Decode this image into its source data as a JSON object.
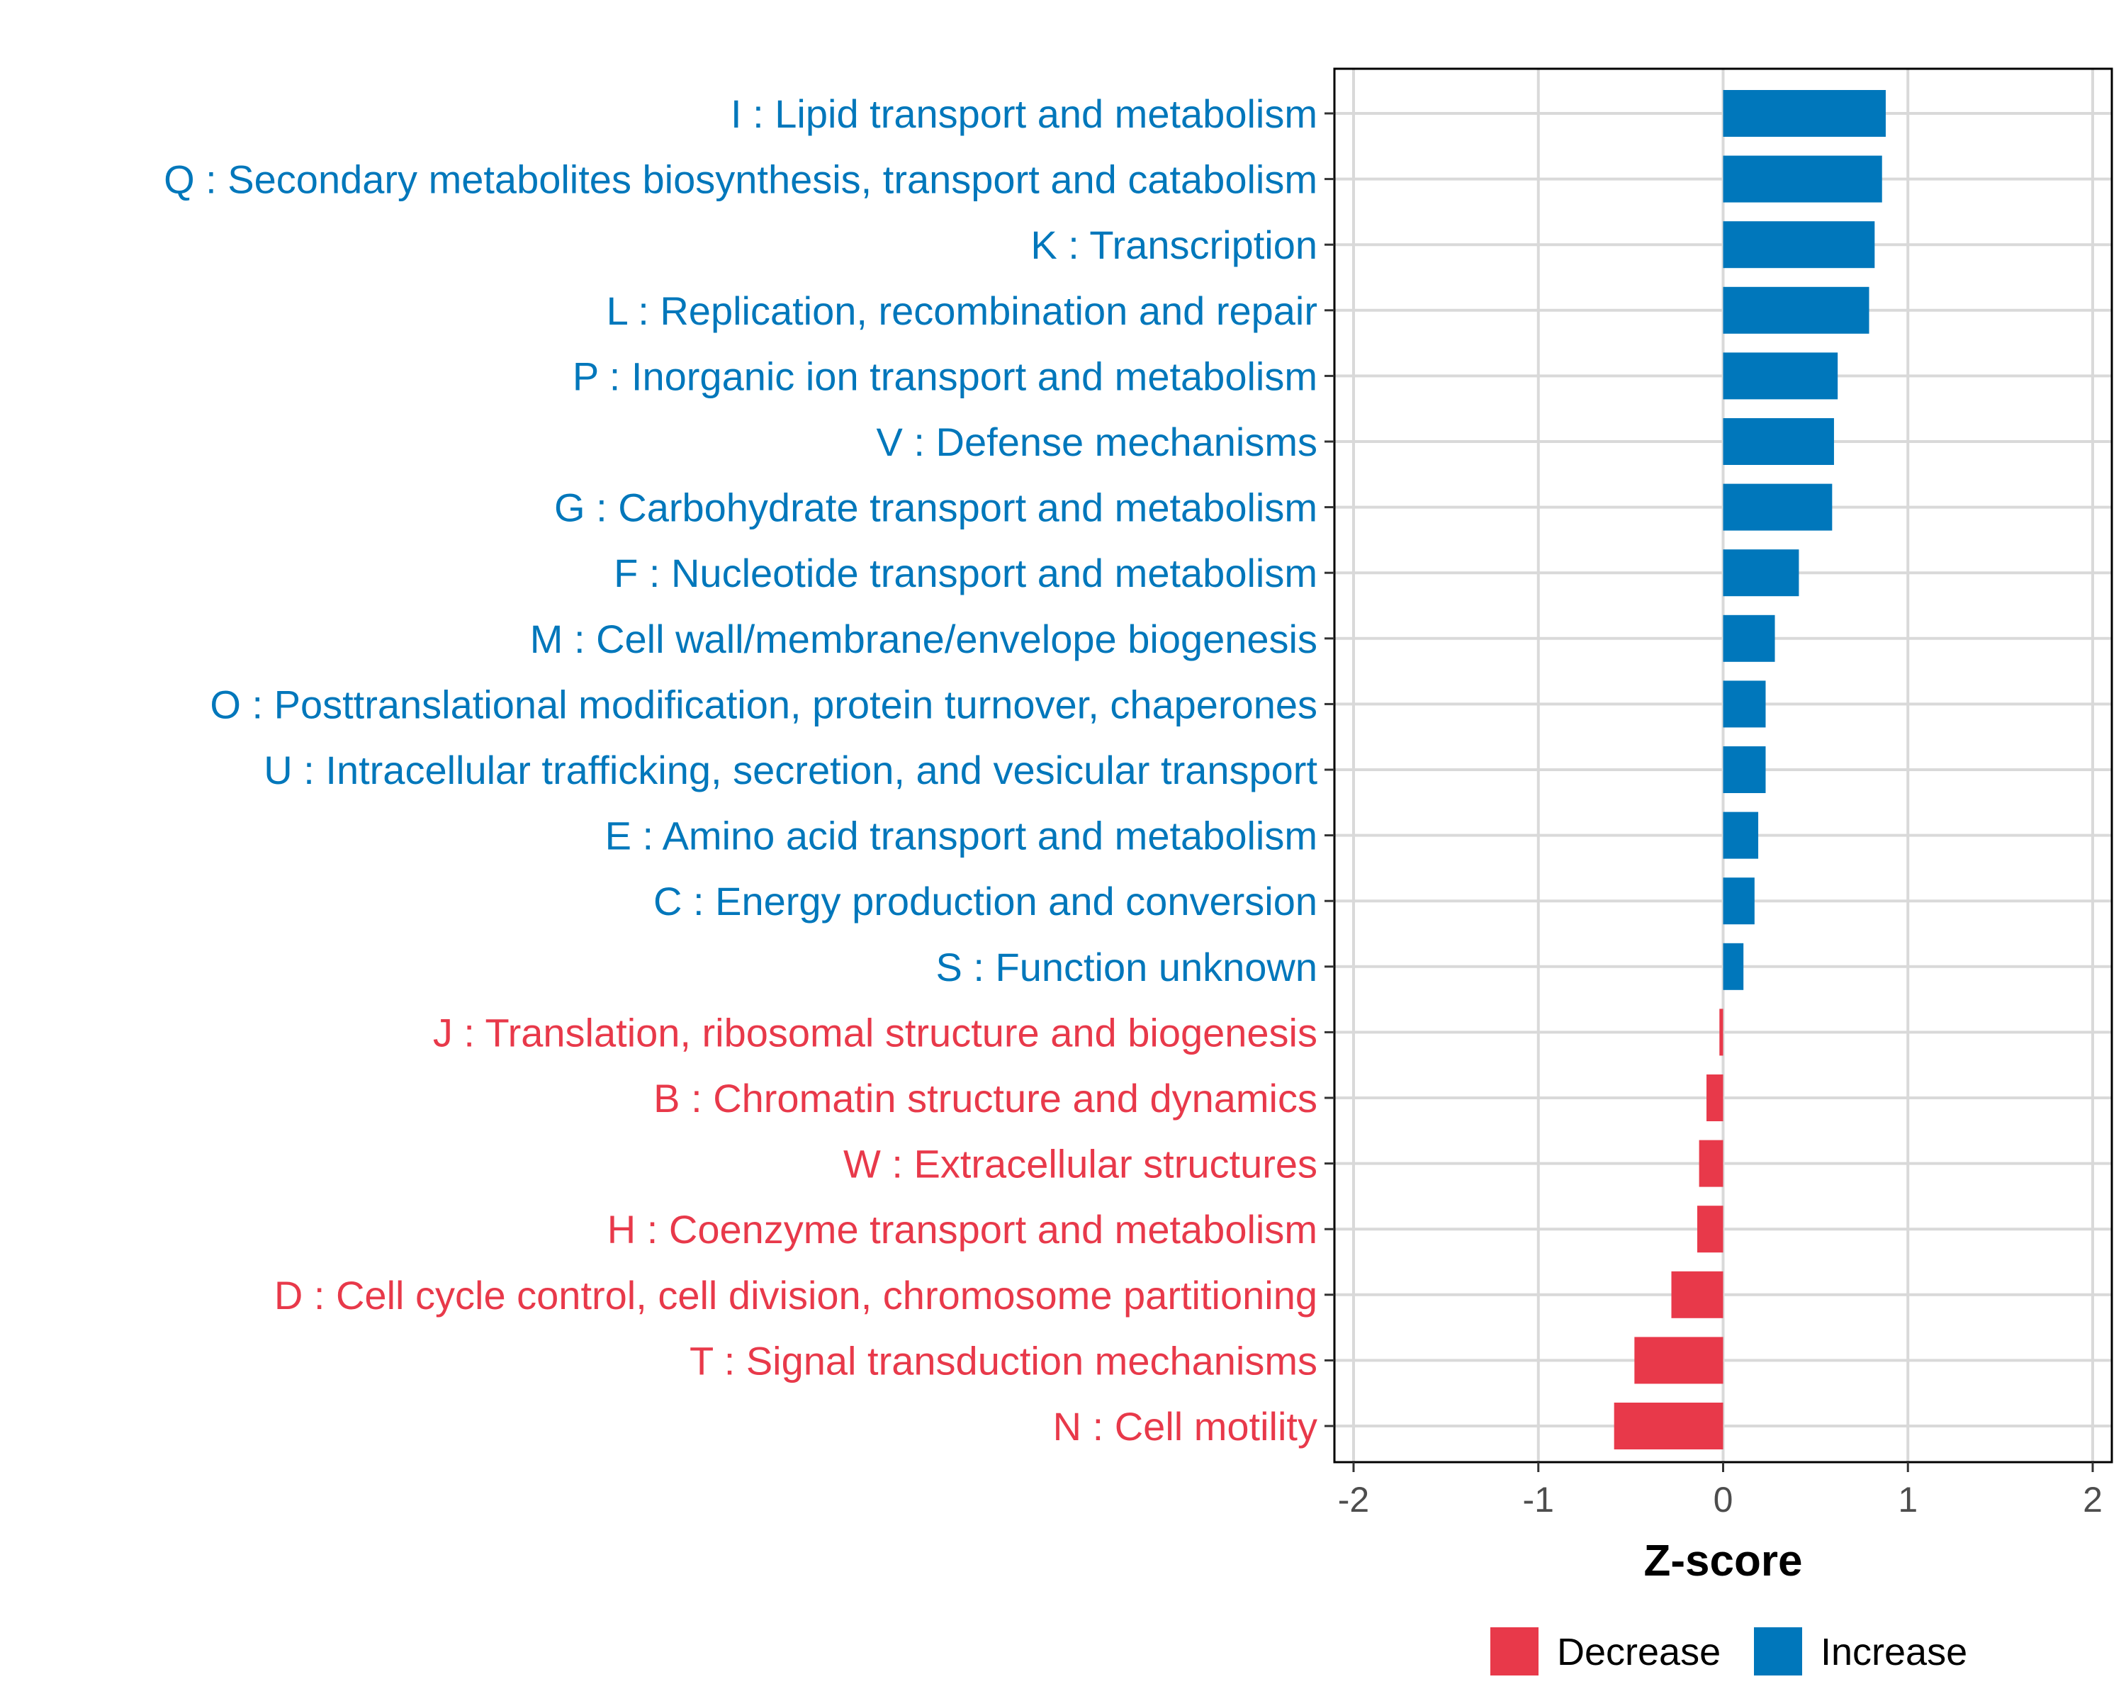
{
  "chart_data": {
    "type": "bar",
    "orientation": "horizontal",
    "title": "",
    "xlabel": "Z-score",
    "ylabel": "",
    "xlim": [
      -2,
      2
    ],
    "xticks": [
      -2,
      -1,
      0,
      1,
      2
    ],
    "xtick_labels": [
      "-2",
      "-1",
      "0",
      "1",
      "2"
    ],
    "grid": true,
    "legend_position": "bottom",
    "colors": {
      "Decrease": "#e8394a",
      "Increase": "#0077bb"
    },
    "legend": [
      {
        "name": "Decrease",
        "color": "#e8394a"
      },
      {
        "name": "Increase",
        "color": "#0077bb"
      }
    ],
    "categories": [
      "I : Lipid transport and metabolism",
      "Q : Secondary metabolites biosynthesis, transport and catabolism",
      "K : Transcription",
      "L : Replication, recombination and repair",
      "P : Inorganic ion transport and metabolism",
      "V : Defense mechanisms",
      "G : Carbohydrate transport and metabolism",
      "F : Nucleotide transport and metabolism",
      "M : Cell wall/membrane/envelope biogenesis",
      "O : Posttranslational modification, protein turnover, chaperones",
      "U : Intracellular trafficking, secretion, and vesicular transport",
      "E : Amino acid transport and metabolism",
      "C : Energy production and conversion",
      "S : Function unknown",
      "J : Translation, ribosomal structure and biogenesis",
      "B : Chromatin structure and dynamics",
      "W : Extracellular structures",
      "H : Coenzyme transport and metabolism",
      "D : Cell cycle control, cell division, chromosome partitioning",
      "T : Signal transduction mechanisms",
      "N : Cell motility"
    ],
    "values": [
      0.88,
      0.86,
      0.82,
      0.79,
      0.62,
      0.6,
      0.59,
      0.41,
      0.28,
      0.23,
      0.23,
      0.19,
      0.17,
      0.11,
      -0.02,
      -0.09,
      -0.13,
      -0.14,
      -0.28,
      -0.48,
      -0.59
    ],
    "groups": [
      "Increase",
      "Increase",
      "Increase",
      "Increase",
      "Increase",
      "Increase",
      "Increase",
      "Increase",
      "Increase",
      "Increase",
      "Increase",
      "Increase",
      "Increase",
      "Increase",
      "Decrease",
      "Decrease",
      "Decrease",
      "Decrease",
      "Decrease",
      "Decrease",
      "Decrease"
    ]
  }
}
